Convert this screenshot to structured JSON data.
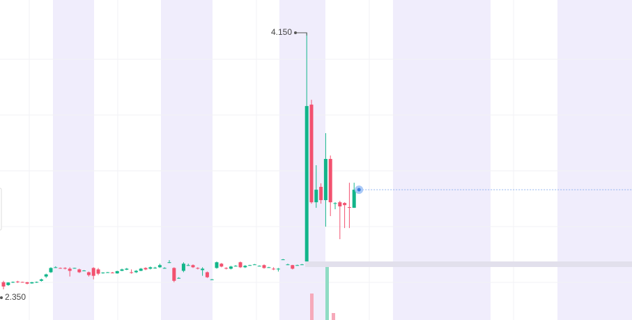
{
  "chart_data": {
    "type": "candlestick",
    "ylim": [
      2.135,
      4.38
    ],
    "up_color": "#12b58a",
    "down_color": "#f2516f",
    "open": [
      2.4,
      2.38,
      2.4,
      2.405,
      2.402,
      2.4,
      2.392,
      2.4,
      2.41,
      2.44,
      2.47,
      2.505,
      2.5,
      2.5,
      2.495,
      2.5,
      2.49,
      2.48,
      2.47,
      2.5,
      2.49,
      2.465,
      2.47,
      2.468,
      2.462,
      2.48,
      2.488,
      2.47,
      2.47,
      2.48,
      2.5,
      2.495,
      2.5,
      2.505,
      2.5,
      2.54,
      2.5,
      2.43,
      2.48,
      2.52,
      2.52,
      2.5,
      2.485,
      2.47,
      2.42,
      2.5,
      2.53,
      2.5,
      2.495,
      2.515,
      2.54,
      2.505,
      2.52,
      2.525,
      2.515,
      2.52,
      2.505,
      2.495,
      2.49,
      2.56,
      2.525,
      2.52,
      2.52,
      2.525,
      2.546,
      3.646,
      2.961,
      3.069,
      2.976,
      3.265,
      2.952,
      2.961,
      2.956,
      2.927,
      2.922
    ],
    "high": [
      2.41,
      2.4,
      2.405,
      2.41,
      2.404,
      2.402,
      2.402,
      2.405,
      2.425,
      2.46,
      2.505,
      2.512,
      2.503,
      2.505,
      2.505,
      2.502,
      2.495,
      2.485,
      2.475,
      2.505,
      2.5,
      2.47,
      2.472,
      2.472,
      2.48,
      2.495,
      2.5,
      2.49,
      2.485,
      2.5,
      2.505,
      2.51,
      2.508,
      2.53,
      2.505,
      2.555,
      2.505,
      2.435,
      2.54,
      2.53,
      2.525,
      2.505,
      2.505,
      2.475,
      2.423,
      2.545,
      2.535,
      2.505,
      2.515,
      2.52,
      2.545,
      2.52,
      2.522,
      2.528,
      2.518,
      2.525,
      2.508,
      2.505,
      2.5,
      2.563,
      2.53,
      2.522,
      2.523,
      2.528,
      4.15,
      3.68,
      3.221,
      3.094,
      3.446,
      3.289,
      2.961,
      2.971,
      2.961,
      3.098,
      3.098
    ],
    "low": [
      2.35,
      2.375,
      2.395,
      2.395,
      2.398,
      2.385,
      2.39,
      2.395,
      2.405,
      2.43,
      2.465,
      2.5,
      2.495,
      2.49,
      2.44,
      2.498,
      2.465,
      2.478,
      2.44,
      2.42,
      2.45,
      2.46,
      2.465,
      2.462,
      2.46,
      2.478,
      2.485,
      2.46,
      2.465,
      2.478,
      2.485,
      2.49,
      2.495,
      2.5,
      2.495,
      2.535,
      2.4,
      2.425,
      2.47,
      2.515,
      2.5,
      2.49,
      2.445,
      2.43,
      2.418,
      2.495,
      2.505,
      2.49,
      2.49,
      2.51,
      2.5,
      2.5,
      2.518,
      2.522,
      2.512,
      2.495,
      2.502,
      2.485,
      2.475,
      2.557,
      2.52,
      2.49,
      2.518,
      2.522,
      2.546,
      2.951,
      2.922,
      2.951,
      2.79,
      2.864,
      2.912,
      2.702,
      2.78,
      2.78,
      2.922
    ],
    "close": [
      2.37,
      2.398,
      2.402,
      2.4,
      2.4,
      2.39,
      2.4,
      2.402,
      2.42,
      2.455,
      2.5,
      2.505,
      2.498,
      2.495,
      2.48,
      2.5,
      2.47,
      2.482,
      2.45,
      2.445,
      2.46,
      2.468,
      2.47,
      2.465,
      2.478,
      2.49,
      2.495,
      2.468,
      2.48,
      2.495,
      2.49,
      2.505,
      2.502,
      2.52,
      2.5,
      2.54,
      2.41,
      2.43,
      2.53,
      2.52,
      2.505,
      2.495,
      2.495,
      2.435,
      2.42,
      2.54,
      2.51,
      2.495,
      2.51,
      2.515,
      2.505,
      2.515,
      2.52,
      2.525,
      2.515,
      2.5,
      2.505,
      2.49,
      2.495,
      2.56,
      2.525,
      2.495,
      2.52,
      2.525,
      3.636,
      2.961,
      3.049,
      2.976,
      3.265,
      2.961,
      2.955,
      2.932,
      2.941,
      2.922,
      3.049
    ],
    "annotations": [
      {
        "value": 4.15,
        "label": "4.150"
      },
      {
        "value": 2.35,
        "label": "2.350"
      }
    ]
  }
}
